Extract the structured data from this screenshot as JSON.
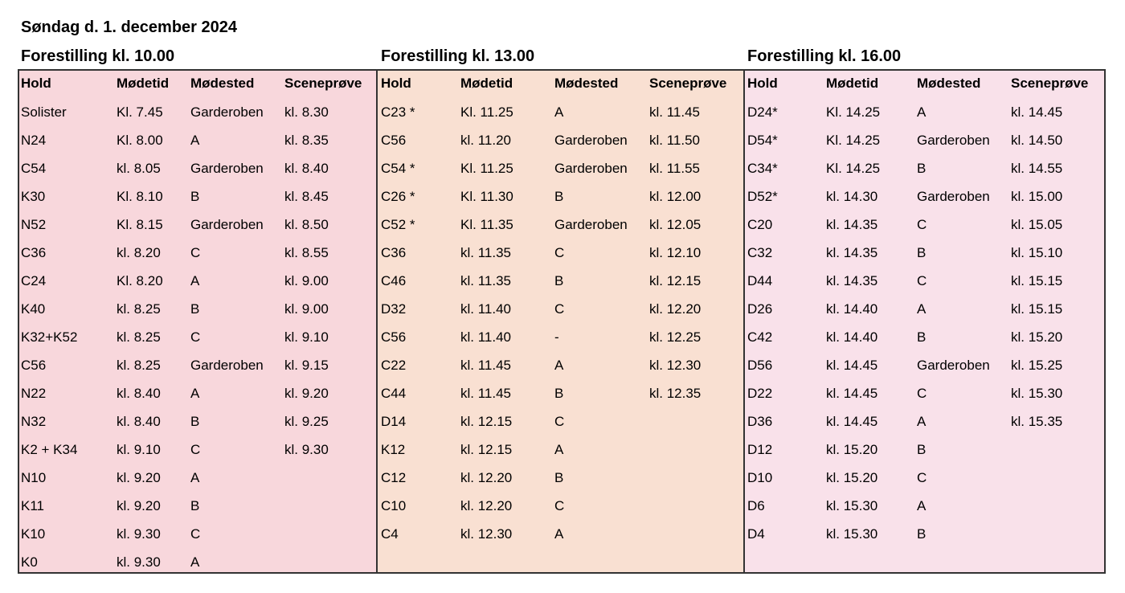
{
  "title": "Søndag d. 1. december 2024",
  "shows": [
    {
      "heading": "Forestilling kl. 10.00",
      "columns": [
        "Hold",
        "Mødetid",
        "Mødested",
        "Sceneprøve"
      ],
      "rows": [
        [
          "Solister",
          "Kl. 7.45",
          "Garderoben",
          "kl. 8.30"
        ],
        [
          "N24",
          "Kl. 8.00",
          "A",
          "kl. 8.35"
        ],
        [
          "C54",
          "kl. 8.05",
          "Garderoben",
          "kl. 8.40"
        ],
        [
          "K30",
          "Kl. 8.10",
          "B",
          "kl. 8.45"
        ],
        [
          "N52",
          "Kl. 8.15",
          "Garderoben",
          "kl. 8.50"
        ],
        [
          "C36",
          "kl. 8.20",
          "C",
          "kl. 8.55"
        ],
        [
          "C24",
          "Kl. 8.20",
          "A",
          "kl. 9.00"
        ],
        [
          "K40",
          "kl. 8.25",
          "B",
          "kl. 9.00"
        ],
        [
          "K32+K52",
          "kl. 8.25",
          "C",
          "kl. 9.10"
        ],
        [
          "C56",
          "kl. 8.25",
          "Garderoben",
          "kl. 9.15"
        ],
        [
          "N22",
          "kl. 8.40",
          "A",
          "kl. 9.20"
        ],
        [
          "N32",
          "kl. 8.40",
          "B",
          "kl. 9.25"
        ],
        [
          "K2 + K34",
          "kl. 9.10",
          "C",
          "kl. 9.30"
        ],
        [
          "N10",
          "kl. 9.20",
          "A"
        ],
        [
          "K11",
          "kl. 9.20",
          "B"
        ],
        [
          "K10",
          "kl. 9.30",
          "C"
        ],
        [
          "K0",
          "kl. 9.30",
          "A"
        ]
      ]
    },
    {
      "heading": "Forestilling kl. 13.00",
      "columns": [
        "Hold",
        "Mødetid",
        "Mødested",
        "Sceneprøve"
      ],
      "rows": [
        [
          "C23 *",
          "Kl. 11.25",
          "A",
          "kl. 11.45"
        ],
        [
          "C56",
          "kl. 11.20",
          "Garderoben",
          "kl. 11.50"
        ],
        [
          "C54 *",
          "Kl. 11.25",
          "Garderoben",
          "kl. 11.55"
        ],
        [
          "C26 *",
          "Kl. 11.30",
          "B",
          "kl. 12.00"
        ],
        [
          "C52 *",
          "Kl. 11.35",
          "Garderoben",
          "kl. 12.05"
        ],
        [
          "C36",
          "kl. 11.35",
          "C",
          "kl. 12.10"
        ],
        [
          "C46",
          "kl. 11.35",
          "B",
          "kl. 12.15"
        ],
        [
          "D32",
          "kl. 11.40",
          "C",
          "kl. 12.20"
        ],
        [
          "C56",
          "kl. 11.40",
          "-",
          "kl. 12.25"
        ],
        [
          "C22",
          "kl. 11.45",
          "A",
          "kl. 12.30"
        ],
        [
          "C44",
          "kl. 11.45",
          "B",
          "kl. 12.35"
        ],
        [
          "D14",
          "kl. 12.15",
          "C"
        ],
        [
          "K12",
          "kl. 12.15",
          "A"
        ],
        [
          "C12",
          "kl. 12.20",
          "B"
        ],
        [
          "C10",
          "kl. 12.20",
          "C"
        ],
        [
          "C4",
          "kl. 12.30",
          "A"
        ]
      ]
    },
    {
      "heading": "Forestilling kl. 16.00",
      "columns": [
        "Hold",
        "Mødetid",
        "Mødested",
        "Sceneprøve"
      ],
      "rows": [
        [
          "D24*",
          "Kl. 14.25",
          "A",
          "kl. 14.45"
        ],
        [
          "D54*",
          "Kl. 14.25",
          "Garderoben",
          "kl. 14.50"
        ],
        [
          "C34*",
          "Kl. 14.25",
          "B",
          "kl. 14.55"
        ],
        [
          "D52*",
          "kl. 14.30",
          "Garderoben",
          "kl. 15.00"
        ],
        [
          "C20",
          "kl. 14.35",
          "C",
          "kl. 15.05"
        ],
        [
          "C32",
          "kl. 14.35",
          "B",
          "kl. 15.10"
        ],
        [
          "D44",
          "kl. 14.35",
          "C",
          "kl. 15.15"
        ],
        [
          "D26",
          "kl. 14.40",
          "A",
          "kl. 15.15"
        ],
        [
          "C42",
          "kl. 14.40",
          "B",
          "kl. 15.20"
        ],
        [
          "D56",
          "kl. 14.45",
          "Garderoben",
          "kl. 15.25"
        ],
        [
          "D22",
          "kl. 14.45",
          "C",
          "kl. 15.30"
        ],
        [
          "D36",
          "kl. 14.45",
          "A",
          "kl. 15.35"
        ],
        [
          "D12",
          "kl. 15.20",
          "B"
        ],
        [
          "D10",
          "kl. 15.20",
          "C"
        ],
        [
          "D6",
          "kl. 15.30",
          "A"
        ],
        [
          "D4",
          "kl. 15.30",
          "B"
        ]
      ]
    }
  ]
}
